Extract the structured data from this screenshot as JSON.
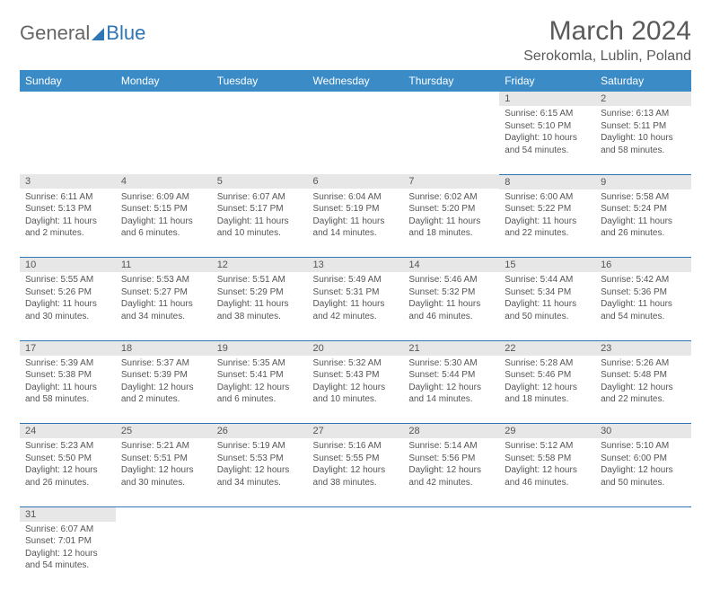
{
  "brand": {
    "part1": "General",
    "part2": "Blue"
  },
  "title": "March 2024",
  "location": "Serokomla, Lublin, Poland",
  "colors": {
    "header_bg": "#3b8bc6",
    "header_text": "#ffffff",
    "daynum_bg": "#e7e7e7",
    "rule": "#2e75b6",
    "text": "#555555",
    "brand_blue": "#2e75b6"
  },
  "weekdays": [
    "Sunday",
    "Monday",
    "Tuesday",
    "Wednesday",
    "Thursday",
    "Friday",
    "Saturday"
  ],
  "weeks": [
    [
      null,
      null,
      null,
      null,
      null,
      {
        "n": "1",
        "sr": "6:15 AM",
        "ss": "5:10 PM",
        "dl": "10 hours and 54 minutes."
      },
      {
        "n": "2",
        "sr": "6:13 AM",
        "ss": "5:11 PM",
        "dl": "10 hours and 58 minutes."
      }
    ],
    [
      {
        "n": "3",
        "sr": "6:11 AM",
        "ss": "5:13 PM",
        "dl": "11 hours and 2 minutes."
      },
      {
        "n": "4",
        "sr": "6:09 AM",
        "ss": "5:15 PM",
        "dl": "11 hours and 6 minutes."
      },
      {
        "n": "5",
        "sr": "6:07 AM",
        "ss": "5:17 PM",
        "dl": "11 hours and 10 minutes."
      },
      {
        "n": "6",
        "sr": "6:04 AM",
        "ss": "5:19 PM",
        "dl": "11 hours and 14 minutes."
      },
      {
        "n": "7",
        "sr": "6:02 AM",
        "ss": "5:20 PM",
        "dl": "11 hours and 18 minutes."
      },
      {
        "n": "8",
        "sr": "6:00 AM",
        "ss": "5:22 PM",
        "dl": "11 hours and 22 minutes."
      },
      {
        "n": "9",
        "sr": "5:58 AM",
        "ss": "5:24 PM",
        "dl": "11 hours and 26 minutes."
      }
    ],
    [
      {
        "n": "10",
        "sr": "5:55 AM",
        "ss": "5:26 PM",
        "dl": "11 hours and 30 minutes."
      },
      {
        "n": "11",
        "sr": "5:53 AM",
        "ss": "5:27 PM",
        "dl": "11 hours and 34 minutes."
      },
      {
        "n": "12",
        "sr": "5:51 AM",
        "ss": "5:29 PM",
        "dl": "11 hours and 38 minutes."
      },
      {
        "n": "13",
        "sr": "5:49 AM",
        "ss": "5:31 PM",
        "dl": "11 hours and 42 minutes."
      },
      {
        "n": "14",
        "sr": "5:46 AM",
        "ss": "5:32 PM",
        "dl": "11 hours and 46 minutes."
      },
      {
        "n": "15",
        "sr": "5:44 AM",
        "ss": "5:34 PM",
        "dl": "11 hours and 50 minutes."
      },
      {
        "n": "16",
        "sr": "5:42 AM",
        "ss": "5:36 PM",
        "dl": "11 hours and 54 minutes."
      }
    ],
    [
      {
        "n": "17",
        "sr": "5:39 AM",
        "ss": "5:38 PM",
        "dl": "11 hours and 58 minutes."
      },
      {
        "n": "18",
        "sr": "5:37 AM",
        "ss": "5:39 PM",
        "dl": "12 hours and 2 minutes."
      },
      {
        "n": "19",
        "sr": "5:35 AM",
        "ss": "5:41 PM",
        "dl": "12 hours and 6 minutes."
      },
      {
        "n": "20",
        "sr": "5:32 AM",
        "ss": "5:43 PM",
        "dl": "12 hours and 10 minutes."
      },
      {
        "n": "21",
        "sr": "5:30 AM",
        "ss": "5:44 PM",
        "dl": "12 hours and 14 minutes."
      },
      {
        "n": "22",
        "sr": "5:28 AM",
        "ss": "5:46 PM",
        "dl": "12 hours and 18 minutes."
      },
      {
        "n": "23",
        "sr": "5:26 AM",
        "ss": "5:48 PM",
        "dl": "12 hours and 22 minutes."
      }
    ],
    [
      {
        "n": "24",
        "sr": "5:23 AM",
        "ss": "5:50 PM",
        "dl": "12 hours and 26 minutes."
      },
      {
        "n": "25",
        "sr": "5:21 AM",
        "ss": "5:51 PM",
        "dl": "12 hours and 30 minutes."
      },
      {
        "n": "26",
        "sr": "5:19 AM",
        "ss": "5:53 PM",
        "dl": "12 hours and 34 minutes."
      },
      {
        "n": "27",
        "sr": "5:16 AM",
        "ss": "5:55 PM",
        "dl": "12 hours and 38 minutes."
      },
      {
        "n": "28",
        "sr": "5:14 AM",
        "ss": "5:56 PM",
        "dl": "12 hours and 42 minutes."
      },
      {
        "n": "29",
        "sr": "5:12 AM",
        "ss": "5:58 PM",
        "dl": "12 hours and 46 minutes."
      },
      {
        "n": "30",
        "sr": "5:10 AM",
        "ss": "6:00 PM",
        "dl": "12 hours and 50 minutes."
      }
    ],
    [
      {
        "n": "31",
        "sr": "6:07 AM",
        "ss": "7:01 PM",
        "dl": "12 hours and 54 minutes."
      },
      null,
      null,
      null,
      null,
      null,
      null
    ]
  ],
  "labels": {
    "sunrise": "Sunrise:",
    "sunset": "Sunset:",
    "daylight": "Daylight:"
  }
}
